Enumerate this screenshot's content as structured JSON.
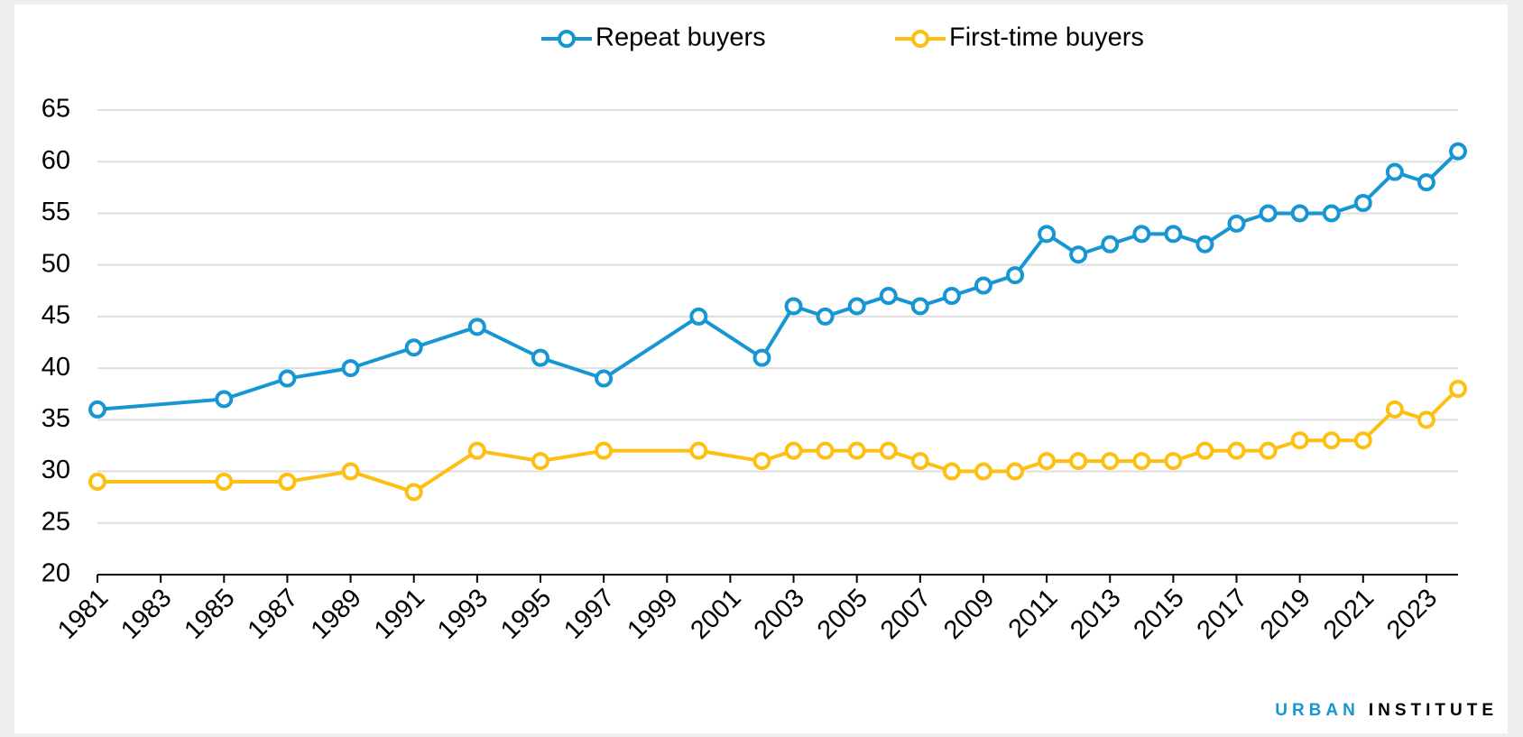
{
  "chart_data": {
    "type": "line",
    "x": [
      1981,
      1985,
      1987,
      1989,
      1991,
      1993,
      1995,
      1997,
      2000,
      2002,
      2003,
      2004,
      2005,
      2006,
      2007,
      2008,
      2009,
      2010,
      2011,
      2012,
      2013,
      2014,
      2015,
      2016,
      2017,
      2018,
      2019,
      2020,
      2021,
      2022,
      2023,
      2024
    ],
    "series": [
      {
        "name": "Repeat buyers",
        "color": "#1696d2",
        "values": [
          36,
          37,
          39,
          40,
          42,
          44,
          41,
          39,
          45,
          41,
          46,
          45,
          46,
          47,
          46,
          47,
          48,
          49,
          53,
          51,
          52,
          53,
          53,
          52,
          54,
          55,
          55,
          55,
          56,
          59,
          58,
          61
        ]
      },
      {
        "name": "First-time buyers",
        "color": "#fdbf11",
        "values": [
          29,
          29,
          29,
          30,
          28,
          32,
          31,
          32,
          32,
          31,
          32,
          32,
          32,
          32,
          31,
          30,
          30,
          30,
          31,
          31,
          31,
          31,
          31,
          32,
          32,
          32,
          33,
          33,
          33,
          36,
          35,
          38
        ]
      }
    ],
    "xlim": [
      1981,
      2024
    ],
    "xticks": [
      1981,
      1983,
      1985,
      1987,
      1989,
      1991,
      1993,
      1995,
      1997,
      1999,
      2001,
      2003,
      2005,
      2007,
      2009,
      2011,
      2013,
      2015,
      2017,
      2019,
      2021,
      2023
    ],
    "ylim": [
      20,
      65
    ],
    "yticks": [
      20,
      25,
      30,
      35,
      40,
      45,
      50,
      55,
      60,
      65
    ],
    "grid": true,
    "legend": "top",
    "brand": {
      "first": "URBAN",
      "second": "INSTITUTE"
    }
  }
}
